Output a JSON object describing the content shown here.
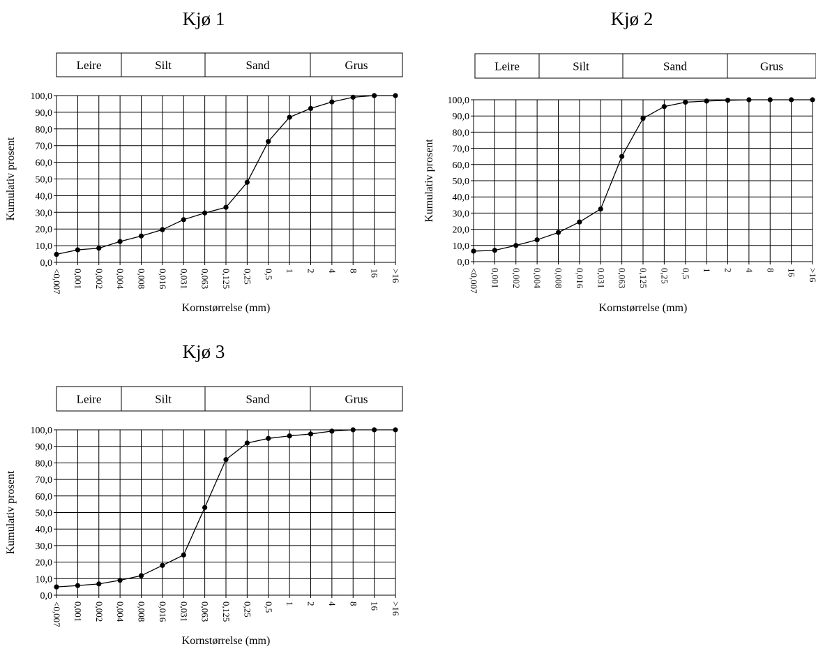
{
  "categories": [
    "<0,007",
    "0,001",
    "0,002",
    "0,004",
    "0,008",
    "0,016",
    "0,031",
    "0,063",
    "0,125",
    "0,25",
    "0,5",
    "1",
    "2",
    "4",
    "8",
    "16",
    ">16"
  ],
  "y_ticks": [
    "0,0",
    "10,0",
    "20,0",
    "30,0",
    "40,0",
    "50,0",
    "60,0",
    "70,0",
    "80,0",
    "90,0",
    "100,0"
  ],
  "bands": [
    "Leire",
    "Silt",
    "Sand",
    "Grus"
  ],
  "chart_data": [
    {
      "type": "line",
      "title": "Kjø 1",
      "xlabel": "Kornstørrelse (mm)",
      "ylabel": "Kumulativ prosent",
      "ylim": [
        0,
        100
      ],
      "grid": true,
      "values": [
        4.8,
        7.5,
        8.5,
        12.5,
        15.8,
        19.6,
        25.6,
        29.6,
        33.0,
        48.0,
        72.5,
        87.0,
        92.3,
        96.2,
        99.0,
        100.0,
        100.0
      ]
    },
    {
      "type": "line",
      "title": "Kjø 2",
      "xlabel": "Kornstørrelse (mm)",
      "ylabel": "Kumulativ prosent",
      "ylim": [
        0,
        100
      ],
      "grid": true,
      "values": [
        6.5,
        7.0,
        10.0,
        13.5,
        18.0,
        24.5,
        32.5,
        65.0,
        88.5,
        95.8,
        98.5,
        99.2,
        99.7,
        100.0,
        100.0,
        100.0,
        100.0
      ]
    },
    {
      "type": "line",
      "title": "Kjø 3",
      "xlabel": "Kornstørrelse (mm)",
      "ylabel": "Kumulativ prosent",
      "ylim": [
        0,
        100
      ],
      "grid": true,
      "values": [
        5.0,
        5.8,
        6.8,
        9.0,
        11.8,
        18.0,
        24.3,
        53.0,
        82.0,
        92.0,
        94.8,
        96.3,
        97.5,
        99.2,
        100.0,
        100.0,
        100.0
      ]
    }
  ]
}
